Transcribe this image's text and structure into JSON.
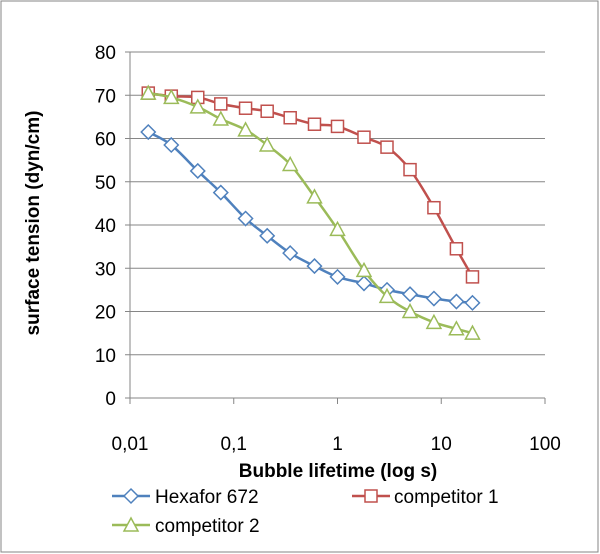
{
  "chart_data": {
    "type": "line",
    "title": "",
    "xlabel": "Bubble lifetime (log s)",
    "ylabel": "surface tension (dyn/cm)",
    "xscale": "log",
    "xlim": [
      0.01,
      100
    ],
    "ylim": [
      0,
      80
    ],
    "xticks": [
      0.01,
      0.1,
      1,
      10,
      100
    ],
    "xtick_labels": [
      "0,01",
      "0,1",
      "1",
      "10",
      "100"
    ],
    "yticks": [
      0,
      10,
      20,
      30,
      40,
      50,
      60,
      70,
      80
    ],
    "ytick_labels": [
      "0",
      "10",
      "20",
      "30",
      "40",
      "50",
      "60",
      "70",
      "80"
    ],
    "grid": "horizontal",
    "legend_position": "bottom",
    "series": [
      {
        "name": "Hexafor 672",
        "color": "#4f81bd",
        "marker": "diamond",
        "x": [
          0.015,
          0.025,
          0.045,
          0.075,
          0.13,
          0.21,
          0.35,
          0.6,
          1.0,
          1.8,
          3.0,
          5.0,
          8.5,
          14,
          20
        ],
        "y": [
          61.5,
          58.5,
          52.5,
          47.5,
          41.5,
          37.5,
          33.5,
          30.5,
          28.0,
          26.5,
          25.0,
          24.0,
          23.0,
          22.3,
          22.0
        ]
      },
      {
        "name": "competitor 1",
        "color": "#c0504d",
        "marker": "square",
        "x": [
          0.015,
          0.025,
          0.045,
          0.075,
          0.13,
          0.21,
          0.35,
          0.6,
          1.0,
          1.8,
          3.0,
          5.0,
          8.5,
          14,
          20
        ],
        "y": [
          70.5,
          69.8,
          69.5,
          68.0,
          67.0,
          66.3,
          64.8,
          63.3,
          62.8,
          60.3,
          58.0,
          52.8,
          44.0,
          34.5,
          28.0
        ]
      },
      {
        "name": "competitor 2",
        "color": "#9bbb59",
        "marker": "triangle",
        "x": [
          0.015,
          0.025,
          0.045,
          0.075,
          0.13,
          0.21,
          0.35,
          0.6,
          1.0,
          1.8,
          3.0,
          5.0,
          8.5,
          14,
          20
        ],
        "y": [
          70.5,
          69.5,
          67.3,
          64.5,
          62.0,
          58.5,
          54.0,
          46.5,
          39.0,
          29.5,
          23.5,
          20.0,
          17.5,
          16.0,
          15.0
        ]
      }
    ]
  }
}
